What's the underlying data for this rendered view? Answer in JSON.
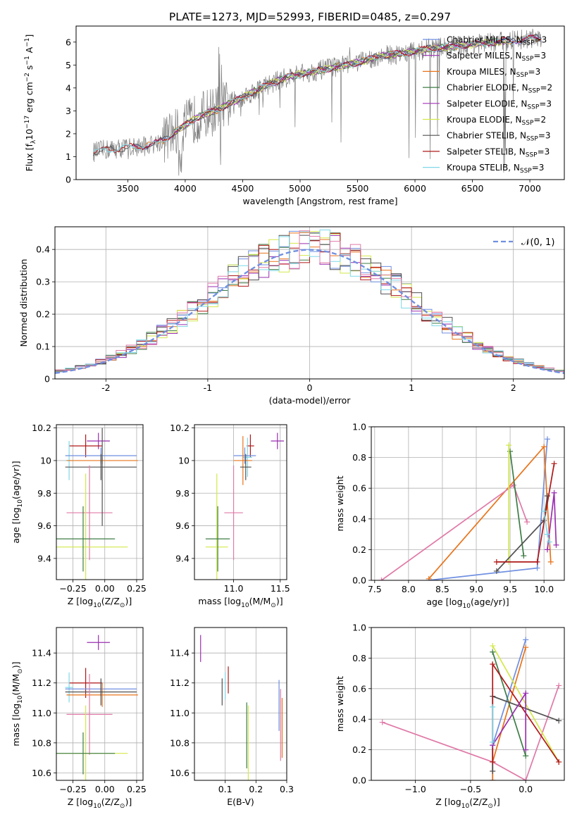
{
  "figure": {
    "title": "PLATE=1273, MJD=52993, FIBERID=0485, z=0.297"
  },
  "colors": {
    "Chabrier MILES": "#6f8fe0",
    "Salpeter MILES": "#9a2fb0",
    "Kroupa MILES": "#e8741c",
    "Chabrier ELODIE": "#3e7d46",
    "Salpeter ELODIE": "#a334b8",
    "Kroupa ELODIE": "#d4e84a",
    "Chabrier STELIB": "#505050",
    "Salpeter STELIB": "#b01818",
    "Kroupa STELIB": "#7fd8e8",
    "pink": "#e07aa8",
    "data": "#7f7f7f"
  },
  "chart_data": [
    {
      "id": "spectrum",
      "type": "line",
      "title": "PLATE=1273, MJD=52993, FIBERID=0485, z=0.297",
      "xlabel": "wavelength [Angstrom, rest frame]",
      "ylabel": "Flux [f",
      "ylabel_parts": {
        "sub": "λ",
        "mid": "10",
        "sup1": "−17",
        "mid2": " erg cm",
        "sup2": "−2",
        "mid3": " s",
        "sup3": "−1",
        "mid4": " A",
        "sup4": "−1",
        "end": "]"
      },
      "xlim": [
        3050,
        7300
      ],
      "ylim": [
        0,
        6.7
      ],
      "xticks": [
        3500,
        4000,
        4500,
        5000,
        5500,
        6000,
        6500,
        7000
      ],
      "yticks": [
        0,
        1,
        2,
        3,
        4,
        5,
        6
      ],
      "grid": false,
      "legend_position": "top-right",
      "legend": [
        {
          "label": "Chabrier MILES, N",
          "sub": "SSP",
          "tail": "=3",
          "color_key": "Chabrier MILES"
        },
        {
          "label": "Salpeter MILES, N",
          "sub": "SSP",
          "tail": "=3",
          "color_key": "Salpeter MILES"
        },
        {
          "label": "Kroupa MILES, N",
          "sub": "SSP",
          "tail": "=3",
          "color_key": "Kroupa MILES"
        },
        {
          "label": "Chabrier ELODIE, N",
          "sub": "SSP",
          "tail": "=2",
          "color_key": "Chabrier ELODIE"
        },
        {
          "label": "Salpeter ELODIE, N",
          "sub": "SSP",
          "tail": "=3",
          "color_key": "Salpeter ELODIE"
        },
        {
          "label": "Kroupa ELODIE, N",
          "sub": "SSP",
          "tail": "=2",
          "color_key": "Kroupa ELODIE"
        },
        {
          "label": "Chabrier STELIB, N",
          "sub": "SSP",
          "tail": "=3",
          "color_key": "Chabrier STELIB"
        },
        {
          "label": "Salpeter STELIB, N",
          "sub": "SSP",
          "tail": "=3",
          "color_key": "Salpeter STELIB"
        },
        {
          "label": "Kroupa STELIB, N",
          "sub": "SSP",
          "tail": "=3",
          "color_key": "Kroupa STELIB"
        }
      ],
      "data_range": [
        3200,
        7100
      ],
      "continuum_anchors": [
        [
          3200,
          1.2
        ],
        [
          3300,
          1.3
        ],
        [
          3500,
          1.4
        ],
        [
          3700,
          1.5
        ],
        [
          3800,
          1.7
        ],
        [
          3950,
          2.2
        ],
        [
          4100,
          2.7
        ],
        [
          4300,
          3.1
        ],
        [
          4500,
          3.6
        ],
        [
          4700,
          4.1
        ],
        [
          4900,
          4.5
        ],
        [
          5100,
          4.7
        ],
        [
          5300,
          4.9
        ],
        [
          5500,
          5.1
        ],
        [
          5700,
          5.4
        ],
        [
          5900,
          5.5
        ],
        [
          6100,
          5.7
        ],
        [
          6300,
          5.8
        ],
        [
          6500,
          5.9
        ],
        [
          6700,
          6.0
        ],
        [
          6900,
          6.1
        ],
        [
          7100,
          6.2
        ]
      ],
      "model_models": [
        "Chabrier MILES",
        "Salpeter MILES",
        "Kroupa MILES",
        "Chabrier ELODIE",
        "Salpeter ELODIE",
        "Kroupa ELODIE",
        "Chabrier STELIB",
        "Salpeter STELIB",
        "Kroupa STELIB"
      ],
      "model_ranges": [
        [
          3540,
          7100
        ],
        [
          3540,
          7100
        ],
        [
          3540,
          7100
        ],
        [
          3900,
          6800
        ],
        [
          3900,
          6800
        ],
        [
          3900,
          6800
        ],
        [
          3200,
          7100
        ],
        [
          3200,
          7100
        ],
        [
          3200,
          7100
        ]
      ]
    },
    {
      "id": "residuals",
      "type": "histogram",
      "xlabel": "(data-model)/error",
      "ylabel": "Normed distribution",
      "xlim": [
        -2.5,
        2.5
      ],
      "ylim": [
        0,
        0.47
      ],
      "xticks": [
        -2,
        -1,
        0,
        1,
        2
      ],
      "yticks": [
        0.0,
        0.1,
        0.2,
        0.3,
        0.4
      ],
      "grid": true,
      "legend_position": "top-right",
      "legend": [
        {
          "label": "𝒩(0, 1)",
          "style": "dashed",
          "color": "#6f8fe0"
        }
      ],
      "bin_width": 0.1,
      "series_colors": [
        "Chabrier MILES",
        "Salpeter MILES",
        "Kroupa MILES",
        "Chabrier ELODIE",
        "Kroupa ELODIE",
        "Chabrier STELIB",
        "Salpeter STELIB",
        "Kroupa STELIB",
        "pink"
      ]
    },
    {
      "id": "age_vs_Z",
      "type": "scatter",
      "xlabel": "Z [log",
      "xlabel_parts": {
        "sub": "10",
        "mid": "(Z/Z",
        "sub2": "⊙",
        "end": ")]"
      },
      "ylabel": "age  [log",
      "ylabel_parts": {
        "sub": "10",
        "end": "(age/yr)]"
      },
      "xlim": [
        -0.38,
        0.3
      ],
      "ylim": [
        9.27,
        10.22
      ],
      "xticks": [
        "−0.25",
        "0.00",
        "0.25"
      ],
      "xtick_values": [
        -0.25,
        0.0,
        0.25
      ],
      "yticks": [
        9.4,
        9.6,
        9.8,
        10.0,
        10.2
      ],
      "grid": true,
      "points": [
        {
          "series": "Salpeter MILES",
          "x": -0.05,
          "y": 10.12,
          "xerr": 0.09,
          "yerr": 0.05
        },
        {
          "series": "Salpeter STELIB",
          "x": -0.15,
          "y": 10.09,
          "xerr": 0.13,
          "yerr": 0.07
        },
        {
          "series": "Kroupa STELIB",
          "x": -0.28,
          "y": 10.0,
          "xerr": 0.03,
          "yerr": 0.12
        },
        {
          "series": "Chabrier MILES",
          "x": -0.03,
          "y": 10.03,
          "xerr": 0.28,
          "yerr": 0.05
        },
        {
          "series": "Kroupa MILES",
          "x": -0.02,
          "y": 10.0,
          "xerr": 0.28,
          "yerr": 0.02
        },
        {
          "series": "Chabrier STELIB",
          "x": -0.03,
          "y": 9.96,
          "xerr": 0.28,
          "yerr": 0.08
        },
        {
          "series": "pink",
          "x": -0.12,
          "y": 9.68,
          "xerr": 0.18,
          "yerr": 0.29
        },
        {
          "series": "Kroupa ELODIE",
          "x": -0.15,
          "y": 9.47,
          "xerr": 0.33,
          "yerr": 0.45
        },
        {
          "series": "Chabrier ELODIE",
          "x": -0.17,
          "y": 9.52,
          "xerr": 0.25,
          "yerr": 0.2
        },
        {
          "series": "Chabrier STELIB",
          "x": -0.02,
          "y": 9.9,
          "xerr": 0.0,
          "yerr": 0.3
        }
      ]
    },
    {
      "id": "age_vs_mass",
      "type": "scatter",
      "xlabel": "mass [log",
      "xlabel_parts": {
        "sub": "10",
        "mid": "(M/M",
        "sub2": "⊙",
        "end": ")]"
      },
      "ylabel": "",
      "xlim": [
        10.58,
        11.57
      ],
      "ylim": [
        9.27,
        10.22
      ],
      "xticks": [
        "11.0",
        "11.5"
      ],
      "xtick_values": [
        11.0,
        11.5
      ],
      "yticks": [
        9.4,
        9.6,
        9.8,
        10.0,
        10.2
      ],
      "grid": true,
      "points": [
        {
          "series": "Salpeter MILES",
          "x": 11.47,
          "y": 10.12,
          "xerr": 0.07,
          "yerr": 0.05
        },
        {
          "series": "Salpeter STELIB",
          "x": 11.18,
          "y": 10.09,
          "xerr": 0.04,
          "yerr": 0.07
        },
        {
          "series": "Kroupa STELIB",
          "x": 11.15,
          "y": 10.02,
          "xerr": 0.05,
          "yerr": 0.12
        },
        {
          "series": "Chabrier MILES",
          "x": 11.12,
          "y": 10.03,
          "xerr": 0.12,
          "yerr": 0.05
        },
        {
          "series": "Kroupa MILES",
          "x": 11.1,
          "y": 10.0,
          "xerr": 0.1,
          "yerr": 0.15
        },
        {
          "series": "Chabrier STELIB",
          "x": 11.13,
          "y": 9.96,
          "xerr": 0.06,
          "yerr": 0.08
        },
        {
          "series": "pink",
          "x": 11.0,
          "y": 9.68,
          "xerr": 0.1,
          "yerr": 0.29
        },
        {
          "series": "Kroupa ELODIE",
          "x": 10.82,
          "y": 9.47,
          "xerr": 0.12,
          "yerr": 0.45
        },
        {
          "series": "Chabrier ELODIE",
          "x": 10.83,
          "y": 9.52,
          "xerr": 0.13,
          "yerr": 0.2
        }
      ]
    },
    {
      "id": "weight_vs_age",
      "type": "line",
      "xlabel": "age  [log",
      "xlabel_parts": {
        "sub": "10",
        "end": "(age/yr)]"
      },
      "ylabel": "mass weight",
      "xlim": [
        7.45,
        10.3
      ],
      "ylim": [
        0,
        1.0
      ],
      "xticks": [
        "7.5",
        "8.0",
        "8.5",
        "9.0",
        "9.5",
        "10.0"
      ],
      "xtick_values": [
        7.5,
        8.0,
        8.5,
        9.0,
        9.5,
        10.0
      ],
      "yticks": [
        "0.0",
        "0.2",
        "0.4",
        "0.6",
        "0.8",
        "1.0"
      ],
      "ytick_values": [
        0,
        0.2,
        0.4,
        0.6,
        0.8,
        1.0
      ],
      "grid": true,
      "series": [
        {
          "series": "Chabrier MILES",
          "x": [
            8.3,
            9.9,
            10.05
          ],
          "y": [
            0.0,
            0.08,
            0.92
          ]
        },
        {
          "series": "Kroupa MILES",
          "x": [
            8.3,
            10.0,
            10.1
          ],
          "y": [
            0.01,
            0.87,
            0.12
          ]
        },
        {
          "series": "pink",
          "x": [
            7.6,
            9.55,
            9.75
          ],
          "y": [
            0.0,
            0.62,
            0.38
          ]
        },
        {
          "series": "Chabrier ELODIE",
          "x": [
            9.5,
            9.7
          ],
          "y": [
            0.84,
            0.16
          ]
        },
        {
          "series": "Kroupa ELODIE",
          "x": [
            9.48,
            9.48
          ],
          "y": [
            0.88,
            0.12
          ]
        },
        {
          "series": "Chabrier STELIB",
          "x": [
            9.3,
            10.0,
            10.05
          ],
          "y": [
            0.06,
            0.39,
            0.55
          ]
        },
        {
          "series": "Salpeter STELIB",
          "x": [
            9.3,
            9.9,
            10.15
          ],
          "y": [
            0.12,
            0.12,
            0.76
          ]
        },
        {
          "series": "Salpeter MILES",
          "x": [
            10.05,
            10.15,
            10.18
          ],
          "y": [
            0.2,
            0.57,
            0.23
          ]
        },
        {
          "series": "Kroupa STELIB",
          "x": [
            10.0,
            10.05,
            10.08
          ],
          "y": [
            0.45,
            0.3,
            0.25
          ]
        }
      ]
    },
    {
      "id": "mass_vs_Z",
      "type": "scatter",
      "xlabel": "Z [log",
      "xlabel_parts": {
        "sub": "10",
        "mid": "(Z/Z",
        "sub2": "⊙",
        "end": ")]"
      },
      "ylabel": "mass [log",
      "ylabel_parts": {
        "sub": "10",
        "mid": "(M/M",
        "sub2": "⊙",
        "end": ")]"
      },
      "xlim": [
        -0.38,
        0.3
      ],
      "ylim": [
        10.55,
        11.57
      ],
      "xticks": [
        "−0.25",
        "0.00",
        "0.25"
      ],
      "xtick_values": [
        -0.25,
        0.0,
        0.25
      ],
      "yticks": [
        "10.6",
        "10.8",
        "11.0",
        "11.2",
        "11.4"
      ],
      "ytick_values": [
        10.6,
        10.8,
        11.0,
        11.2,
        11.4
      ],
      "grid": true,
      "points": [
        {
          "series": "Salpeter MILES",
          "x": -0.05,
          "y": 11.47,
          "xerr": 0.09,
          "yerr": 0.05
        },
        {
          "series": "Salpeter STELIB",
          "x": -0.15,
          "y": 11.2,
          "xerr": 0.13,
          "yerr": 0.1
        },
        {
          "series": "Kroupa STELIB",
          "x": -0.28,
          "y": 11.17,
          "xerr": 0.03,
          "yerr": 0.1
        },
        {
          "series": "Chabrier MILES",
          "x": -0.03,
          "y": 11.16,
          "xerr": 0.28,
          "yerr": 0.05
        },
        {
          "series": "Kroupa MILES",
          "x": -0.02,
          "y": 11.12,
          "xerr": 0.28,
          "yerr": 0.08
        },
        {
          "series": "Chabrier STELIB",
          "x": -0.03,
          "y": 11.14,
          "xerr": 0.28,
          "yerr": 0.09
        },
        {
          "series": "pink",
          "x": -0.12,
          "y": 10.99,
          "xerr": 0.18,
          "yerr": 0.27
        },
        {
          "series": "Kroupa ELODIE",
          "x": -0.15,
          "y": 10.73,
          "xerr": 0.33,
          "yerr": 0.32
        },
        {
          "series": "Chabrier ELODIE",
          "x": -0.17,
          "y": 10.73,
          "xerr": 0.25,
          "yerr": 0.14
        }
      ]
    },
    {
      "id": "mass_vs_ebv",
      "type": "scatter",
      "xlabel": "E(B-V)",
      "ylabel": "",
      "xlim": [
        0.0,
        0.3
      ],
      "ylim": [
        10.55,
        11.57
      ],
      "xticks": [
        "0.1",
        "0.2",
        "0.3"
      ],
      "xtick_values": [
        0.1,
        0.2,
        0.3
      ],
      "yticks": [
        "10.6",
        "10.8",
        "11.0",
        "11.2",
        "11.4"
      ],
      "ytick_values": [
        10.6,
        10.8,
        11.0,
        11.2,
        11.4
      ],
      "grid": true,
      "points": [
        {
          "series": "Salpeter MILES",
          "x": 0.02,
          "y": 11.43,
          "xerr": 0,
          "yerr": 0.09
        },
        {
          "series": "Chabrier STELIB",
          "x": 0.09,
          "y": 11.14,
          "xerr": 0,
          "yerr": 0.09
        },
        {
          "series": "Kroupa STELIB",
          "x": 0.1,
          "y": 11.18,
          "xerr": 0,
          "yerr": 0.09
        },
        {
          "series": "Salpeter STELIB",
          "x": 0.11,
          "y": 11.22,
          "xerr": 0,
          "yerr": 0.09
        },
        {
          "series": "Chabrier ELODIE",
          "x": 0.17,
          "y": 10.85,
          "xerr": 0,
          "yerr": 0.22
        },
        {
          "series": "Kroupa ELODIE",
          "x": 0.175,
          "y": 10.8,
          "xerr": 0,
          "yerr": 0.25
        },
        {
          "series": "Chabrier MILES",
          "x": 0.275,
          "y": 11.05,
          "xerr": 0,
          "yerr": 0.17
        },
        {
          "series": "pink",
          "x": 0.28,
          "y": 10.92,
          "xerr": 0,
          "yerr": 0.24
        },
        {
          "series": "Kroupa MILES",
          "x": 0.285,
          "y": 10.9,
          "xerr": 0,
          "yerr": 0.2
        }
      ]
    },
    {
      "id": "weight_vs_Z",
      "type": "line",
      "xlabel": "Z [log",
      "xlabel_parts": {
        "sub": "10",
        "mid": "(Z/Z",
        "sub2": "⊙",
        "end": ")]"
      },
      "ylabel": "mass weight",
      "xlim": [
        -1.4,
        0.35
      ],
      "ylim": [
        0,
        1.0
      ],
      "xticks": [
        "−1.0",
        "−0.5",
        "0.0"
      ],
      "xtick_values": [
        -1.0,
        -0.5,
        0.0
      ],
      "yticks": [
        "0.0",
        "0.2",
        "0.4",
        "0.6",
        "0.8",
        "1.0"
      ],
      "ytick_values": [
        0,
        0.2,
        0.4,
        0.6,
        0.8,
        1.0
      ],
      "grid": true,
      "series": [
        {
          "series": "pink",
          "x": [
            -1.3,
            -0.3,
            0.0,
            0.3
          ],
          "y": [
            0.38,
            0.12,
            0.0,
            0.62
          ]
        },
        {
          "series": "Chabrier MILES",
          "x": [
            -0.3,
            -0.3,
            0.0
          ],
          "y": [
            0.0,
            0.23,
            0.92
          ]
        },
        {
          "series": "Kroupa MILES",
          "x": [
            -0.3,
            -0.3,
            0.0
          ],
          "y": [
            0.0,
            0.12,
            0.87
          ]
        },
        {
          "series": "Kroupa ELODIE",
          "x": [
            -0.3,
            0.3
          ],
          "y": [
            0.88,
            0.12
          ]
        },
        {
          "series": "Chabrier ELODIE",
          "x": [
            -0.3,
            0.0
          ],
          "y": [
            0.84,
            0.16
          ]
        },
        {
          "series": "Chabrier STELIB",
          "x": [
            -0.3,
            -0.3,
            0.3
          ],
          "y": [
            0.06,
            0.55,
            0.39
          ]
        },
        {
          "series": "Salpeter STELIB",
          "x": [
            -0.3,
            -0.3,
            0.3
          ],
          "y": [
            0.12,
            0.76,
            0.12
          ]
        },
        {
          "series": "Salpeter MILES",
          "x": [
            -0.3,
            0.0,
            0.0
          ],
          "y": [
            0.23,
            0.57,
            0.2
          ]
        },
        {
          "series": "Kroupa STELIB",
          "x": [
            -0.3,
            -0.3
          ],
          "y": [
            0.25,
            0.48
          ]
        }
      ]
    }
  ]
}
